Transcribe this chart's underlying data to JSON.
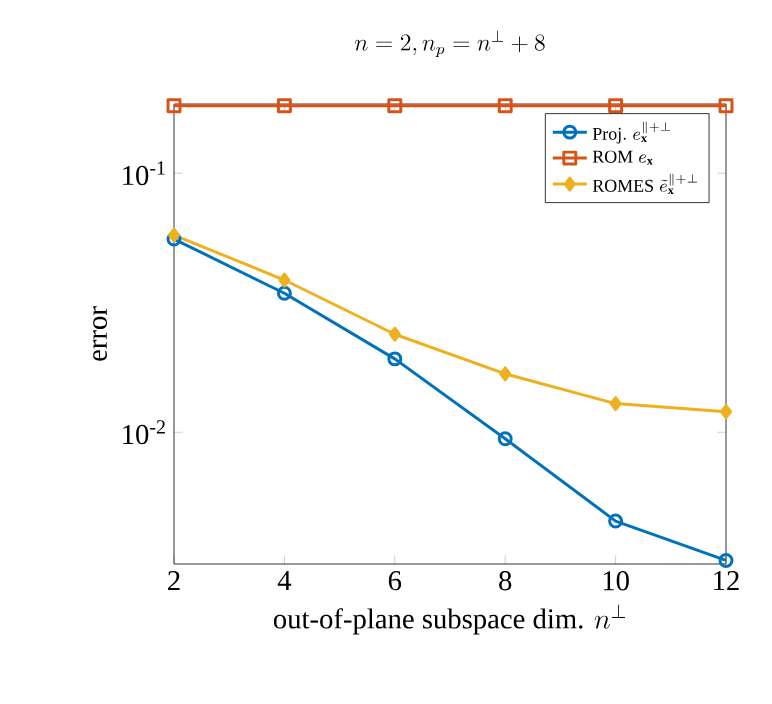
{
  "chart_data": {
    "type": "line",
    "title": "n = 2, n_p = n^{\\perp} + 8",
    "xlabel": "\\text{out-of-plane subspace dim. } n^{\\perp}",
    "ylabel": "error",
    "x": [
      2,
      4,
      6,
      8,
      10,
      12
    ],
    "xlim": [
      2,
      12
    ],
    "xticks": [
      2,
      4,
      6,
      8,
      10,
      12
    ],
    "log": "y",
    "ylim": [
      0.0031,
      0.185
    ],
    "yticks": [
      {
        "value": 0.1,
        "label": "10$^{-1}$"
      },
      {
        "value": 0.01,
        "label": "10$^{-2}$"
      }
    ],
    "grid": false,
    "legend": "top right",
    "series": [
      {
        "name": "\\mathrm{Proj.}\\; e_{\\mathbf{x}}^{\\parallel+\\perp}",
        "color": "#0072bd",
        "marker": "circle",
        "values": [
          0.0557,
          0.0344,
          0.0192,
          0.00944,
          0.00454,
          0.0032
        ]
      },
      {
        "name": "\\mathrm{ROM}\\; e_{\\mathbf{x}}",
        "color": "#d95319",
        "marker": "square",
        "values": [
          0.182,
          0.182,
          0.182,
          0.182,
          0.182,
          0.182
        ]
      },
      {
        "name": "\\mathrm{ROMES}\\; \\tilde{e}_{\\mathbf{x}}^{\\parallel+\\perp}",
        "color": "#edb120",
        "marker": "diamond",
        "values": [
          0.0577,
          0.0387,
          0.0239,
          0.0168,
          0.0129,
          0.012
        ]
      }
    ]
  }
}
